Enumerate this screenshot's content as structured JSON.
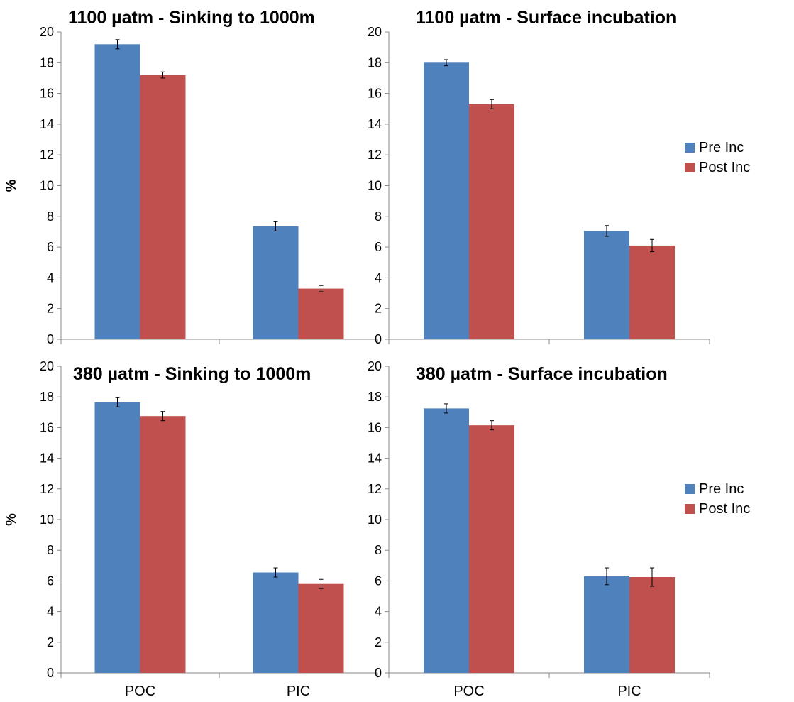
{
  "colors": {
    "pre_inc": "#4F81BD",
    "post_inc": "#C0504D",
    "axis": "#888888",
    "error_bar": "#000000"
  },
  "chart_data": [
    {
      "type": "bar",
      "title": "1100 µatm - Sinking to 1000m",
      "xlabel": "",
      "ylabel": "%",
      "ylim": [
        0,
        20
      ],
      "yticks": [
        0,
        2,
        4,
        6,
        8,
        10,
        12,
        14,
        16,
        18,
        20
      ],
      "grid": false,
      "categories": [
        "POC",
        "PIC"
      ],
      "show_category_labels": false,
      "series": [
        {
          "name": "Pre Inc",
          "color": "#4F81BD",
          "values": [
            19.2,
            7.35
          ],
          "errors": [
            0.3,
            0.3
          ]
        },
        {
          "name": "Post Inc",
          "color": "#C0504D",
          "values": [
            17.2,
            3.3
          ],
          "errors": [
            0.2,
            0.2
          ]
        }
      ],
      "legend": "none"
    },
    {
      "type": "bar",
      "title": "1100 µatm - Surface incubation",
      "xlabel": "",
      "ylabel": "",
      "ylim": [
        0,
        20
      ],
      "yticks": [
        0,
        2,
        4,
        6,
        8,
        10,
        12,
        14,
        16,
        18,
        20
      ],
      "grid": false,
      "categories": [
        "POC",
        "PIC"
      ],
      "show_category_labels": false,
      "series": [
        {
          "name": "Pre Inc",
          "color": "#4F81BD",
          "values": [
            18.0,
            7.05
          ],
          "errors": [
            0.2,
            0.35
          ]
        },
        {
          "name": "Post Inc",
          "color": "#C0504D",
          "values": [
            15.3,
            6.1
          ],
          "errors": [
            0.3,
            0.4
          ]
        }
      ],
      "legend": "right"
    },
    {
      "type": "bar",
      "title": "380 µatm - Sinking to 1000m",
      "xlabel": "",
      "ylabel": "%",
      "ylim": [
        0,
        20
      ],
      "yticks": [
        0,
        2,
        4,
        6,
        8,
        10,
        12,
        14,
        16,
        18,
        20
      ],
      "grid": false,
      "categories": [
        "POC",
        "PIC"
      ],
      "show_category_labels": true,
      "series": [
        {
          "name": "Pre Inc",
          "color": "#4F81BD",
          "values": [
            17.65,
            6.55
          ],
          "errors": [
            0.3,
            0.3
          ]
        },
        {
          "name": "Post Inc",
          "color": "#C0504D",
          "values": [
            16.75,
            5.8
          ],
          "errors": [
            0.3,
            0.3
          ]
        }
      ],
      "legend": "none"
    },
    {
      "type": "bar",
      "title": "380 µatm - Surface incubation",
      "xlabel": "",
      "ylabel": "",
      "ylim": [
        0,
        20
      ],
      "yticks": [
        0,
        2,
        4,
        6,
        8,
        10,
        12,
        14,
        16,
        18,
        20
      ],
      "grid": false,
      "categories": [
        "POC",
        "PIC"
      ],
      "show_category_labels": true,
      "series": [
        {
          "name": "Pre Inc",
          "color": "#4F81BD",
          "values": [
            17.25,
            6.3
          ],
          "errors": [
            0.3,
            0.55
          ]
        },
        {
          "name": "Post Inc",
          "color": "#C0504D",
          "values": [
            16.15,
            6.25
          ],
          "errors": [
            0.3,
            0.6
          ]
        }
      ],
      "legend": "right"
    }
  ]
}
